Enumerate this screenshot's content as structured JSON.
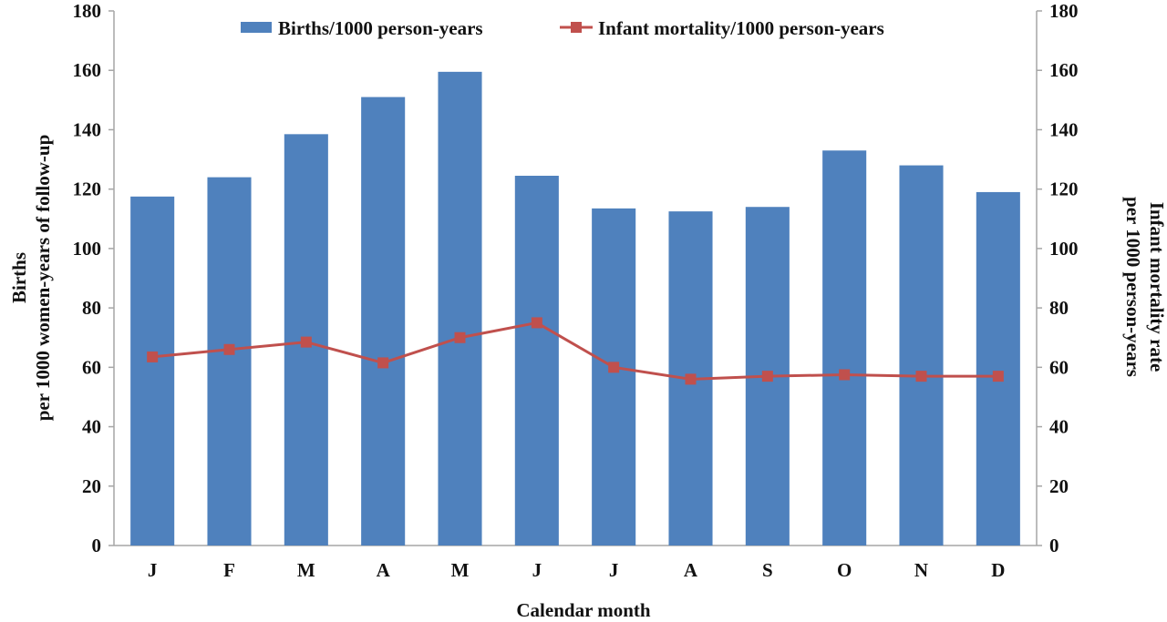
{
  "chart_data": {
    "type": "bar",
    "categories": [
      "J",
      "F",
      "M",
      "A",
      "M",
      "J",
      "J",
      "A",
      "S",
      "O",
      "N",
      "D"
    ],
    "series": [
      {
        "name": "Births/1000 person-years",
        "type": "bar",
        "axis": "left",
        "color": "#4f81bd",
        "values": [
          117.5,
          124,
          138.5,
          151,
          159.5,
          124.5,
          113.5,
          112.5,
          114,
          133,
          128,
          119
        ]
      },
      {
        "name": "Infant mortality/1000 person-years",
        "type": "line",
        "axis": "right",
        "color": "#c0504d",
        "marker": "square",
        "values": [
          63.5,
          66,
          68.5,
          61.5,
          70,
          75,
          60,
          56,
          57,
          57.5,
          57,
          57
        ]
      }
    ],
    "xlabel": "Calendar month",
    "ylabel_left": [
      "Births",
      "per 1000 women-years of follow-up"
    ],
    "ylabel_right": [
      "Infant mortality rate",
      "per 1000 person-years"
    ],
    "ylim_left": [
      0,
      180
    ],
    "ylim_right": [
      0,
      180
    ],
    "yticks": [
      0,
      20,
      40,
      60,
      80,
      100,
      120,
      140,
      160,
      180
    ],
    "grid": false,
    "legend": "top"
  }
}
